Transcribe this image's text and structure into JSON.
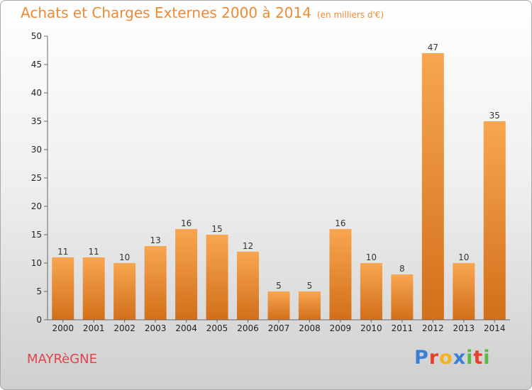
{
  "title": "Achats et Charges Externes 2000 à 2014",
  "subtitle": "(en milliers d'€)",
  "commune": "MAYRèGNE",
  "logo": {
    "text": "Proxiti",
    "letters": [
      {
        "ch": "P",
        "color": "#3a7fd5"
      },
      {
        "ch": "r",
        "color": "#e8402e"
      },
      {
        "ch": "o",
        "color": "#f6b21a"
      },
      {
        "ch": "x",
        "color": "#3a7fd5"
      },
      {
        "ch": "i",
        "color": "#5cb844"
      },
      {
        "ch": "t",
        "color": "#e8402e"
      },
      {
        "ch": "i",
        "color": "#5cb844"
      }
    ]
  },
  "colors": {
    "title": "#ee8a33",
    "commune": "#e0454a",
    "bar_light": "#f8a650",
    "bar_dark": "#d26f1a"
  },
  "chart_data": {
    "type": "bar",
    "categories": [
      "2000",
      "2001",
      "2002",
      "2003",
      "2004",
      "2005",
      "2006",
      "2007",
      "2008",
      "2009",
      "2010",
      "2011",
      "2012",
      "2013",
      "2014"
    ],
    "values": [
      11,
      11,
      10,
      13,
      16,
      15,
      12,
      5,
      5,
      16,
      10,
      8,
      47,
      10,
      35
    ],
    "ylim": [
      0,
      50
    ],
    "yticks": [
      0,
      5,
      10,
      15,
      20,
      25,
      30,
      35,
      40,
      45,
      50
    ],
    "grid": false,
    "legend": "none"
  }
}
